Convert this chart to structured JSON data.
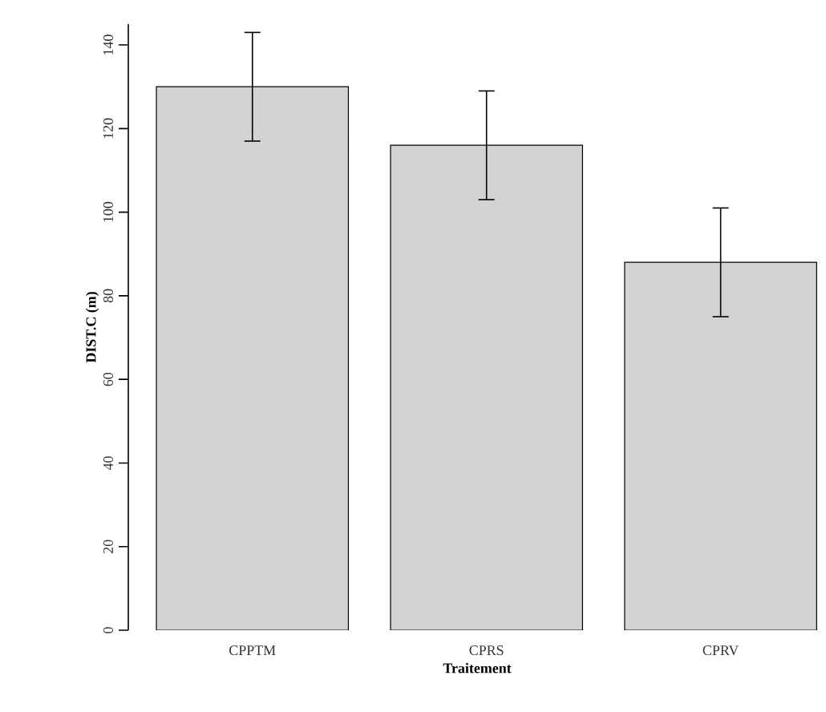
{
  "chart_data": {
    "type": "bar",
    "xlabel": "Traitement",
    "ylabel": "DIST.C  (m)",
    "categories": [
      "CPPTM",
      "CPRS",
      "CPRV"
    ],
    "values": [
      130,
      116,
      88
    ],
    "errors": [
      13,
      13,
      13
    ],
    "color": "#d3d3d3",
    "ylim": [
      0,
      145
    ],
    "yticks": [
      0,
      20,
      40,
      60,
      80,
      100,
      120,
      140
    ]
  }
}
